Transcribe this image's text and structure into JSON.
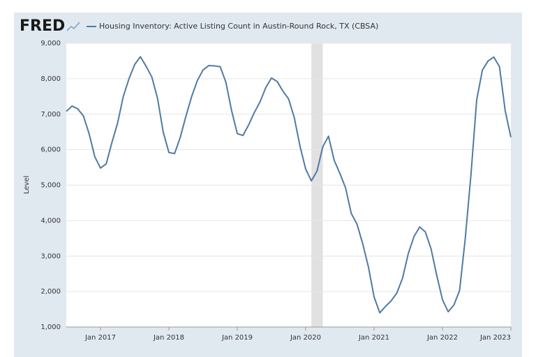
{
  "logo": "FRED",
  "chart_data": {
    "type": "line",
    "y_label": "Level",
    "x": [
      "2016-07",
      "2016-08",
      "2016-09",
      "2016-10",
      "2016-11",
      "2016-12",
      "2017-01",
      "2017-02",
      "2017-03",
      "2017-04",
      "2017-05",
      "2017-06",
      "2017-07",
      "2017-08",
      "2017-09",
      "2017-10",
      "2017-11",
      "2017-12",
      "2018-01",
      "2018-02",
      "2018-03",
      "2018-04",
      "2018-05",
      "2018-06",
      "2018-07",
      "2018-08",
      "2018-09",
      "2018-10",
      "2018-11",
      "2018-12",
      "2019-01",
      "2019-02",
      "2019-03",
      "2019-04",
      "2019-05",
      "2019-06",
      "2019-07",
      "2019-08",
      "2019-09",
      "2019-10",
      "2019-11",
      "2019-12",
      "2020-01",
      "2020-02",
      "2020-03",
      "2020-04",
      "2020-05",
      "2020-06",
      "2020-07",
      "2020-08",
      "2020-09",
      "2020-10",
      "2020-11",
      "2020-12",
      "2021-01",
      "2021-02",
      "2021-03",
      "2021-04",
      "2021-05",
      "2021-06",
      "2021-07",
      "2021-08",
      "2021-09",
      "2021-10",
      "2021-11",
      "2021-12",
      "2022-01",
      "2022-02",
      "2022-03",
      "2022-04",
      "2022-05",
      "2022-06",
      "2022-07",
      "2022-08",
      "2022-09",
      "2022-10",
      "2022-11",
      "2022-12",
      "2023-01"
    ],
    "series": [
      {
        "name": "Housing Inventory: Active Listing Count in Austin-Round Rock, TX (CBSA)",
        "color": "#4f7aa3",
        "values": [
          7080,
          7230,
          7150,
          6950,
          6450,
          5800,
          5480,
          5600,
          6200,
          6750,
          7500,
          8000,
          8400,
          8620,
          8350,
          8050,
          7450,
          6500,
          5920,
          5890,
          6350,
          6950,
          7500,
          7950,
          8250,
          8370,
          8360,
          8340,
          7900,
          7100,
          6450,
          6400,
          6700,
          7050,
          7350,
          7750,
          8020,
          7920,
          7650,
          7430,
          6900,
          6100,
          5450,
          5120,
          5400,
          6080,
          6380,
          5700,
          5330,
          4920,
          4200,
          3900,
          3350,
          2700,
          1850,
          1400,
          1580,
          1740,
          1960,
          2380,
          3070,
          3550,
          3820,
          3680,
          3200,
          2450,
          1770,
          1430,
          1620,
          2030,
          3500,
          5300,
          7400,
          8240,
          8500,
          8610,
          8340,
          7100,
          6350
        ]
      }
    ],
    "recessions": [
      {
        "start": "2020-02",
        "end": "2020-04"
      }
    ],
    "ylim": [
      1000,
      9000
    ],
    "yticks": [
      {
        "value": 1000,
        "label": "1,000"
      },
      {
        "value": 2000,
        "label": "2,000"
      },
      {
        "value": 3000,
        "label": "3,000"
      },
      {
        "value": 4000,
        "label": "4,000"
      },
      {
        "value": 5000,
        "label": "5,000"
      },
      {
        "value": 6000,
        "label": "6,000"
      },
      {
        "value": 7000,
        "label": "7,000"
      },
      {
        "value": 8000,
        "label": "8,000"
      },
      {
        "value": 9000,
        "label": "9,000"
      }
    ],
    "xticks": [
      {
        "value": "2017-01",
        "label": "Jan 2017"
      },
      {
        "value": "2018-01",
        "label": "Jan 2018"
      },
      {
        "value": "2019-01",
        "label": "Jan 2019"
      },
      {
        "value": "2020-01",
        "label": "Jan 2020"
      },
      {
        "value": "2021-01",
        "label": "Jan 2021"
      },
      {
        "value": "2022-01",
        "label": "Jan 2022"
      },
      {
        "value": "2023-01",
        "label": "Jan 2023"
      }
    ],
    "grid": true
  }
}
